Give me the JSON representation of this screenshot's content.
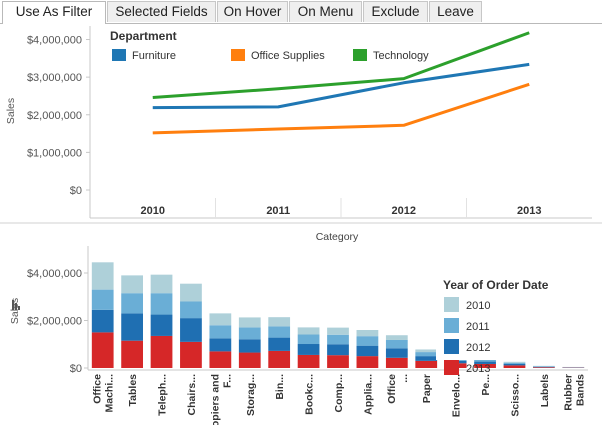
{
  "tabs": [
    {
      "label": "Use As Filter",
      "active": true
    },
    {
      "label": "Selected Fields",
      "active": false
    },
    {
      "label": "On Hover",
      "active": false
    },
    {
      "label": "On Menu",
      "active": false
    },
    {
      "label": "Exclude",
      "active": false
    },
    {
      "label": "Leave",
      "active": false
    }
  ],
  "colors": {
    "furniture": "#1f77b4",
    "office_supplies": "#ff7f0e",
    "technology": "#2ca02c",
    "y2010": "#aed0d9",
    "y2011": "#6aaed6",
    "y2012": "#1f6fb2",
    "y2013": "#d62728"
  },
  "icons": {
    "chart_toggle": "bar-chart-icon"
  },
  "chart_data": [
    {
      "type": "line",
      "title": "",
      "xlabel": "",
      "ylabel": "Sales",
      "x": [
        "2010",
        "2011",
        "2012",
        "2013"
      ],
      "ylim": [
        0,
        4200000
      ],
      "yticks": [
        "$0",
        "$1,000,000",
        "$2,000,000",
        "$3,000,000",
        "$4,000,000"
      ],
      "ytick_values": [
        0,
        1000000,
        2000000,
        3000000,
        4000000
      ],
      "grid": false,
      "legend_title": "Department",
      "legend_position": "top",
      "series": [
        {
          "name": "Furniture",
          "color_key": "furniture",
          "values": [
            2190000,
            2210000,
            2850000,
            3340000
          ]
        },
        {
          "name": "Office Supplies",
          "color_key": "office_supplies",
          "values": [
            1520000,
            1620000,
            1720000,
            2810000
          ]
        },
        {
          "name": "Technology",
          "color_key": "technology",
          "values": [
            2460000,
            2690000,
            2960000,
            4180000
          ]
        }
      ]
    },
    {
      "type": "bar",
      "stacked": true,
      "title": "",
      "xlabel": "Category",
      "ylabel": "Sales",
      "ylim": [
        0,
        4800000
      ],
      "yticks": [
        "$0",
        "$2,000,000",
        "$4,000,000"
      ],
      "ytick_values": [
        0,
        2000000,
        4000000
      ],
      "legend_title": "Year of Order Date",
      "legend_position": "right",
      "categories": [
        "Office Machi...",
        "Tables",
        "Teleph...",
        "Chairs...",
        "Copiers and F...",
        "Storag...",
        "Bin...",
        "Bookc...",
        "Comp...",
        "Applia...",
        "Office ...",
        "Paper",
        "Envelo...",
        "Pe...",
        "Scisso...",
        "Labels",
        "Rubber Bands"
      ],
      "series": [
        {
          "name": "2013",
          "color_key": "y2013",
          "values": [
            1500000,
            1150000,
            1350000,
            1100000,
            700000,
            650000,
            720000,
            550000,
            540000,
            500000,
            430000,
            300000,
            200000,
            170000,
            110000,
            30000,
            15000
          ]
        },
        {
          "name": "2012",
          "color_key": "y2012",
          "values": [
            950000,
            1150000,
            900000,
            1000000,
            550000,
            560000,
            560000,
            460000,
            460000,
            440000,
            400000,
            200000,
            100000,
            100000,
            60000,
            25000,
            10000
          ]
        },
        {
          "name": "2011",
          "color_key": "y2011",
          "values": [
            850000,
            850000,
            900000,
            700000,
            550000,
            500000,
            470000,
            400000,
            400000,
            400000,
            350000,
            170000,
            80000,
            80000,
            50000,
            20000,
            10000
          ]
        },
        {
          "name": "2010",
          "color_key": "y2010",
          "values": [
            1150000,
            750000,
            780000,
            750000,
            500000,
            420000,
            390000,
            300000,
            300000,
            260000,
            200000,
            110000,
            70000,
            60000,
            40000,
            15000,
            10000
          ]
        }
      ]
    }
  ]
}
